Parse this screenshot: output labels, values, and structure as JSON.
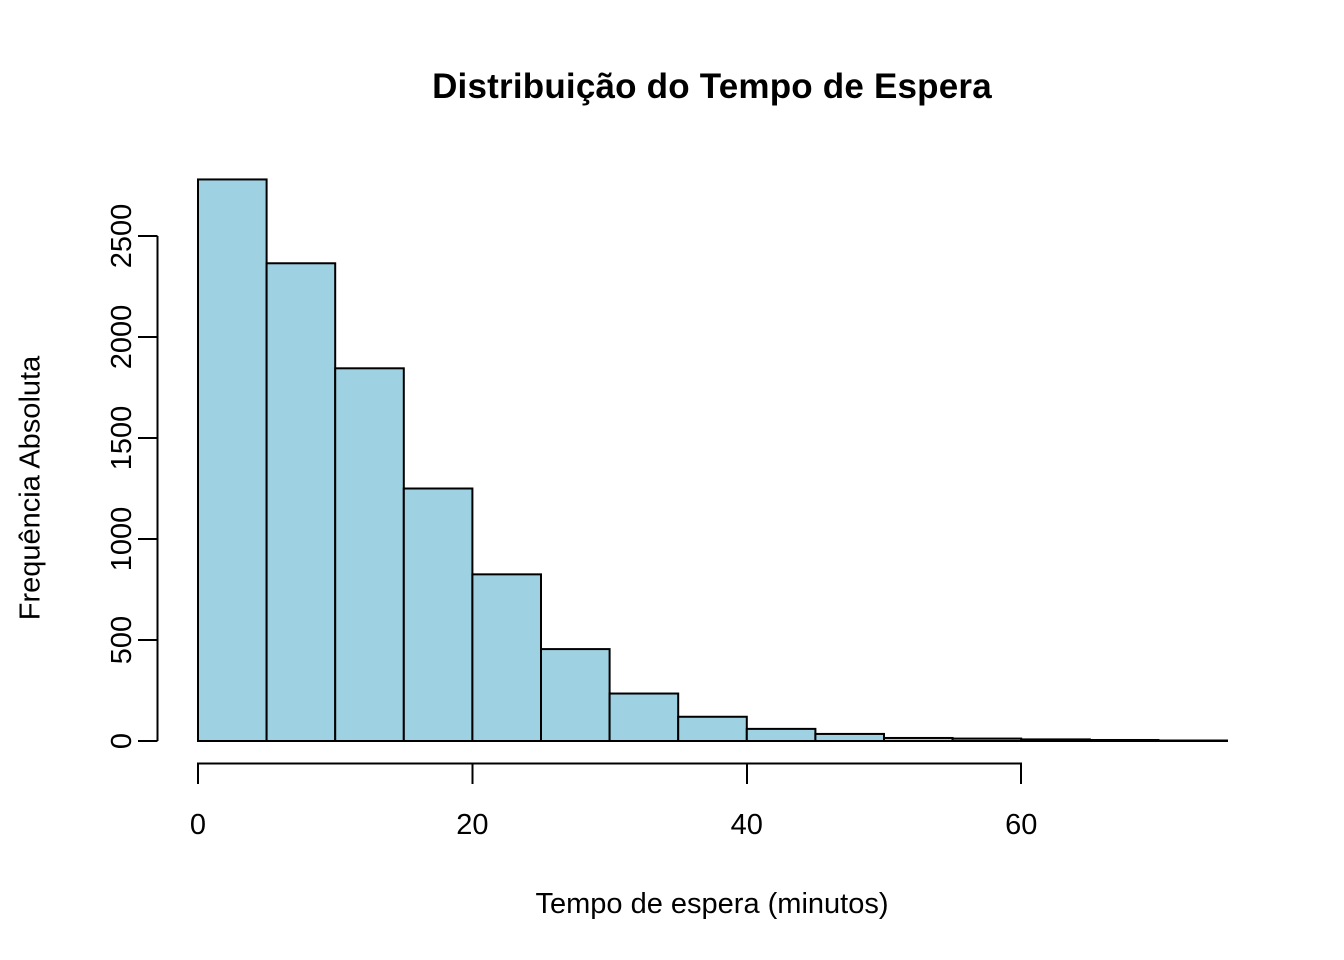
{
  "chart_data": {
    "type": "bar",
    "subtype": "histogram",
    "title": "Distribuição do Tempo de Espera",
    "xlabel": "Tempo de espera (minutos)",
    "ylabel": "Frequência Absoluta",
    "bin_edges": [
      0,
      5,
      10,
      15,
      20,
      25,
      30,
      35,
      40,
      45,
      50,
      55,
      60,
      65,
      70,
      75
    ],
    "categories": [
      "0-5",
      "5-10",
      "10-15",
      "15-20",
      "20-25",
      "25-30",
      "30-35",
      "35-40",
      "40-45",
      "45-50",
      "50-55",
      "55-60",
      "60-65",
      "65-70",
      "70-75"
    ],
    "values": [
      2780,
      2365,
      1845,
      1250,
      825,
      455,
      235,
      120,
      60,
      35,
      15,
      12,
      8,
      5,
      2
    ],
    "x_ticks": [
      0,
      20,
      40,
      60
    ],
    "y_ticks": [
      0,
      500,
      1000,
      1500,
      2000,
      2500
    ],
    "xlim": [
      0,
      75
    ],
    "ylim": [
      0,
      2780
    ],
    "grid": false,
    "legend": null,
    "colors": {
      "bar_fill": "#9ED1E1",
      "bar_stroke": "#000000",
      "axis": "#000000",
      "text": "#000000",
      "background": "#ffffff"
    }
  }
}
